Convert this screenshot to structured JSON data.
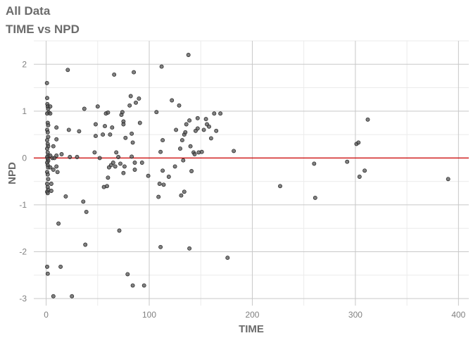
{
  "title": "All Data",
  "subtitle": "TIME vs NPD",
  "chart_data": {
    "type": "scatter",
    "title": "All Data",
    "subtitle": "TIME vs NPD",
    "xlabel": "TIME",
    "ylabel": "NPD",
    "xlim": [
      -12,
      410
    ],
    "ylim": [
      -3.15,
      2.5
    ],
    "xticks": [
      0,
      100,
      200,
      300,
      400
    ],
    "yticks": [
      -3,
      -2,
      -1,
      0,
      1,
      2
    ],
    "grid": true,
    "reference_line": {
      "y": 0,
      "color": "#cc0000"
    },
    "point_color": "#555555",
    "points": [
      [
        0.8,
        1.6
      ],
      [
        1,
        1.28
      ],
      [
        1.2,
        1.15
      ],
      [
        1.5,
        1.1
      ],
      [
        2,
        1.05
      ],
      [
        2.5,
        0.97
      ],
      [
        1,
        0.95
      ],
      [
        1.5,
        0.75
      ],
      [
        2,
        0.7
      ],
      [
        1,
        0.6
      ],
      [
        1.5,
        0.55
      ],
      [
        2,
        0.45
      ],
      [
        1,
        0.38
      ],
      [
        1.5,
        0.3
      ],
      [
        2,
        0.25
      ],
      [
        1,
        0.2
      ],
      [
        1.5,
        0.12
      ],
      [
        2,
        0.05
      ],
      [
        1,
        0.02
      ],
      [
        1.5,
        -0.02
      ],
      [
        2,
        -0.06
      ],
      [
        1,
        -0.1
      ],
      [
        1.5,
        -0.15
      ],
      [
        2,
        -0.2
      ],
      [
        1,
        -0.3
      ],
      [
        1.5,
        -0.35
      ],
      [
        2,
        -0.45
      ],
      [
        1,
        -0.55
      ],
      [
        1.5,
        -0.62
      ],
      [
        2,
        -0.68
      ],
      [
        1,
        -0.72
      ],
      [
        1.5,
        -0.75
      ],
      [
        1,
        -2.32
      ],
      [
        1.5,
        -2.47
      ],
      [
        4,
        1.1
      ],
      [
        4,
        0.95
      ],
      [
        4,
        0.05
      ],
      [
        4,
        -0.2
      ],
      [
        5,
        -0.55
      ],
      [
        5,
        -0.7
      ],
      [
        6,
        0
      ],
      [
        7,
        -0.25
      ],
      [
        7,
        0.25
      ],
      [
        8,
        0
      ],
      [
        10,
        0.65
      ],
      [
        10,
        0.4
      ],
      [
        10,
        0.05
      ],
      [
        10,
        -0.18
      ],
      [
        11,
        -0.3
      ],
      [
        12,
        -1.4
      ],
      [
        14,
        -2.32
      ],
      [
        15,
        0.08
      ],
      [
        7,
        -2.95
      ],
      [
        19,
        -0.82
      ],
      [
        21,
        1.88
      ],
      [
        22,
        0.6
      ],
      [
        23,
        0.02
      ],
      [
        25,
        -2.95
      ],
      [
        30,
        0.02
      ],
      [
        32,
        0.57
      ],
      [
        36,
        -0.93
      ],
      [
        37,
        1.05
      ],
      [
        38,
        -1.85
      ],
      [
        39,
        -1.15
      ],
      [
        47,
        0.12
      ],
      [
        48,
        0.72
      ],
      [
        48,
        0.47
      ],
      [
        50,
        1.1
      ],
      [
        52,
        0
      ],
      [
        55,
        0.5
      ],
      [
        56,
        -0.62
      ],
      [
        57,
        0.68
      ],
      [
        58,
        0.95
      ],
      [
        59,
        -0.6
      ],
      [
        60,
        0.97
      ],
      [
        60,
        -0.42
      ],
      [
        61,
        -0.2
      ],
      [
        62,
        0.5
      ],
      [
        63,
        -0.15
      ],
      [
        64,
        0.65
      ],
      [
        65,
        -0.1
      ],
      [
        66,
        1.78
      ],
      [
        67,
        -0.18
      ],
      [
        68,
        0.12
      ],
      [
        70,
        0.02
      ],
      [
        71,
        -1.55
      ],
      [
        72,
        -0.12
      ],
      [
        73,
        0.92
      ],
      [
        74,
        0.98
      ],
      [
        75,
        0.78
      ],
      [
        75,
        0.72
      ],
      [
        75,
        -0.32
      ],
      [
        76,
        -0.18
      ],
      [
        77,
        0.43
      ],
      [
        79,
        -2.48
      ],
      [
        81,
        1.12
      ],
      [
        82,
        1.32
      ],
      [
        83,
        0.52
      ],
      [
        83,
        0.03
      ],
      [
        84,
        0.33
      ],
      [
        84,
        -2.72
      ],
      [
        85,
        1.83
      ],
      [
        86,
        -0.1
      ],
      [
        86,
        -0.25
      ],
      [
        87,
        1.18
      ],
      [
        90,
        1.27
      ],
      [
        91,
        0.75
      ],
      [
        93,
        -0.1
      ],
      [
        95,
        -2.72
      ],
      [
        99,
        -0.38
      ],
      [
        107,
        0.98
      ],
      [
        109,
        -0.83
      ],
      [
        110,
        -0.55
      ],
      [
        111,
        -1.9
      ],
      [
        111,
        0.13
      ],
      [
        112,
        1.95
      ],
      [
        113,
        0.38
      ],
      [
        113,
        -0.27
      ],
      [
        114,
        -0.57
      ],
      [
        119,
        -0.4
      ],
      [
        122,
        1.23
      ],
      [
        125,
        -0.18
      ],
      [
        126,
        0.6
      ],
      [
        129,
        1.12
      ],
      [
        130,
        0.2
      ],
      [
        131,
        -0.8
      ],
      [
        132,
        0.38
      ],
      [
        133,
        -0.05
      ],
      [
        134,
        0.5
      ],
      [
        134,
        -0.72
      ],
      [
        135,
        0.55
      ],
      [
        136,
        0.72
      ],
      [
        138,
        2.2
      ],
      [
        139,
        0.8
      ],
      [
        139,
        -1.93
      ],
      [
        140,
        0.25
      ],
      [
        141,
        -0.28
      ],
      [
        143,
        0.12
      ],
      [
        144,
        0.08
      ],
      [
        145,
        0.58
      ],
      [
        147,
        0.85
      ],
      [
        147,
        0.63
      ],
      [
        148,
        0.12
      ],
      [
        151,
        0.13
      ],
      [
        153,
        0.6
      ],
      [
        155,
        0.83
      ],
      [
        156,
        0.72
      ],
      [
        158,
        0.67
      ],
      [
        160,
        0.42
      ],
      [
        163,
        0.95
      ],
      [
        165,
        0.58
      ],
      [
        169,
        0.95
      ],
      [
        176,
        -2.13
      ],
      [
        182,
        0.15
      ],
      [
        227,
        -0.6
      ],
      [
        260,
        -0.12
      ],
      [
        261,
        -0.85
      ],
      [
        292,
        -0.08
      ],
      [
        301,
        0.3
      ],
      [
        303,
        0.33
      ],
      [
        304,
        -0.4
      ],
      [
        309,
        -0.27
      ],
      [
        312,
        0.82
      ],
      [
        390,
        -0.45
      ]
    ]
  }
}
